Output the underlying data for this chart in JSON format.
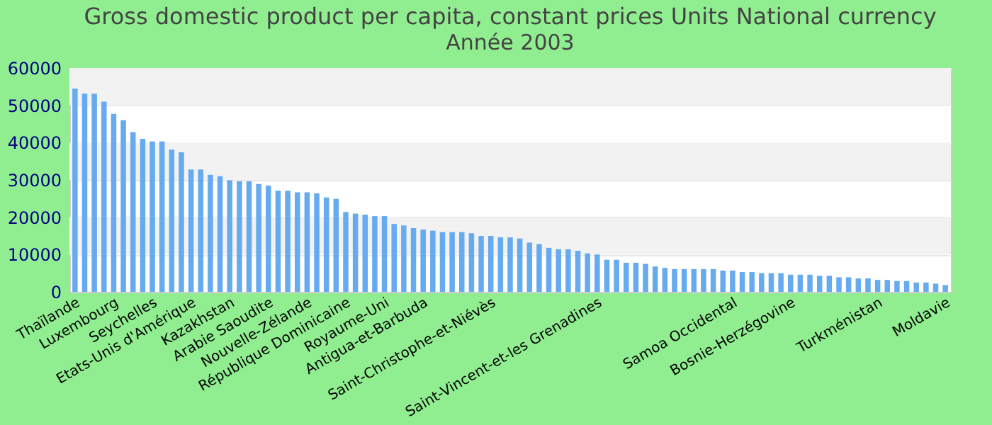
{
  "chart_data": {
    "type": "bar",
    "title": "Gross domestic product per capita, constant prices Units National currency",
    "subtitle": "Année 2003",
    "categories": [
      "Thaïlande",
      null,
      null,
      null,
      "Luxembourg",
      null,
      null,
      null,
      "Seychelles",
      null,
      null,
      null,
      "Etats-Unis d'Amérique",
      null,
      null,
      null,
      "Kazakhstan",
      null,
      null,
      null,
      "Arabie Saoudite",
      null,
      null,
      null,
      "Nouvelle-Zélande",
      null,
      null,
      null,
      "République Dominicaine",
      null,
      null,
      null,
      "Royaume-Uni",
      null,
      null,
      null,
      "Antigua-et-Barbuda",
      null,
      null,
      null,
      null,
      null,
      null,
      "Saint-Christophe-et-Niévès",
      null,
      null,
      null,
      null,
      null,
      null,
      null,
      null,
      null,
      null,
      "Saint-Vincent-et-les Grenadines",
      null,
      null,
      null,
      null,
      null,
      null,
      null,
      null,
      null,
      null,
      null,
      null,
      null,
      "Samoa Occidental",
      null,
      null,
      null,
      null,
      null,
      "Bosnie-Herzégovine",
      null,
      null,
      null,
      null,
      null,
      null,
      null,
      null,
      "Turkménistan",
      null,
      null,
      null,
      null,
      null,
      null,
      "Moldavie"
    ],
    "values": [
      54500,
      53100,
      53100,
      51000,
      47700,
      46000,
      42800,
      41000,
      40300,
      40300,
      38100,
      37400,
      32800,
      32800,
      31400,
      31000,
      29900,
      29600,
      29600,
      28900,
      28500,
      27100,
      27100,
      26700,
      26700,
      26400,
      25300,
      24900,
      21400,
      21000,
      20700,
      20300,
      20300,
      18200,
      17800,
      17100,
      16700,
      16400,
      16000,
      16000,
      16000,
      15700,
      15000,
      15000,
      14600,
      14600,
      14300,
      13200,
      12800,
      11800,
      11400,
      11400,
      11000,
      10300,
      10000,
      8600,
      8600,
      7800,
      7800,
      7500,
      6800,
      6400,
      6100,
      6100,
      6100,
      6100,
      6100,
      5700,
      5700,
      5300,
      5300,
      5000,
      5000,
      5000,
      4600,
      4600,
      4600,
      4300,
      4300,
      3900,
      3900,
      3600,
      3600,
      3200,
      3200,
      2900,
      2900,
      2500,
      2500,
      2200,
      1800
    ],
    "color": "#66aaf0",
    "ylim": [
      0,
      60000
    ],
    "yticks": [
      0,
      10000,
      20000,
      30000,
      40000,
      50000,
      60000
    ],
    "grid": "y"
  }
}
